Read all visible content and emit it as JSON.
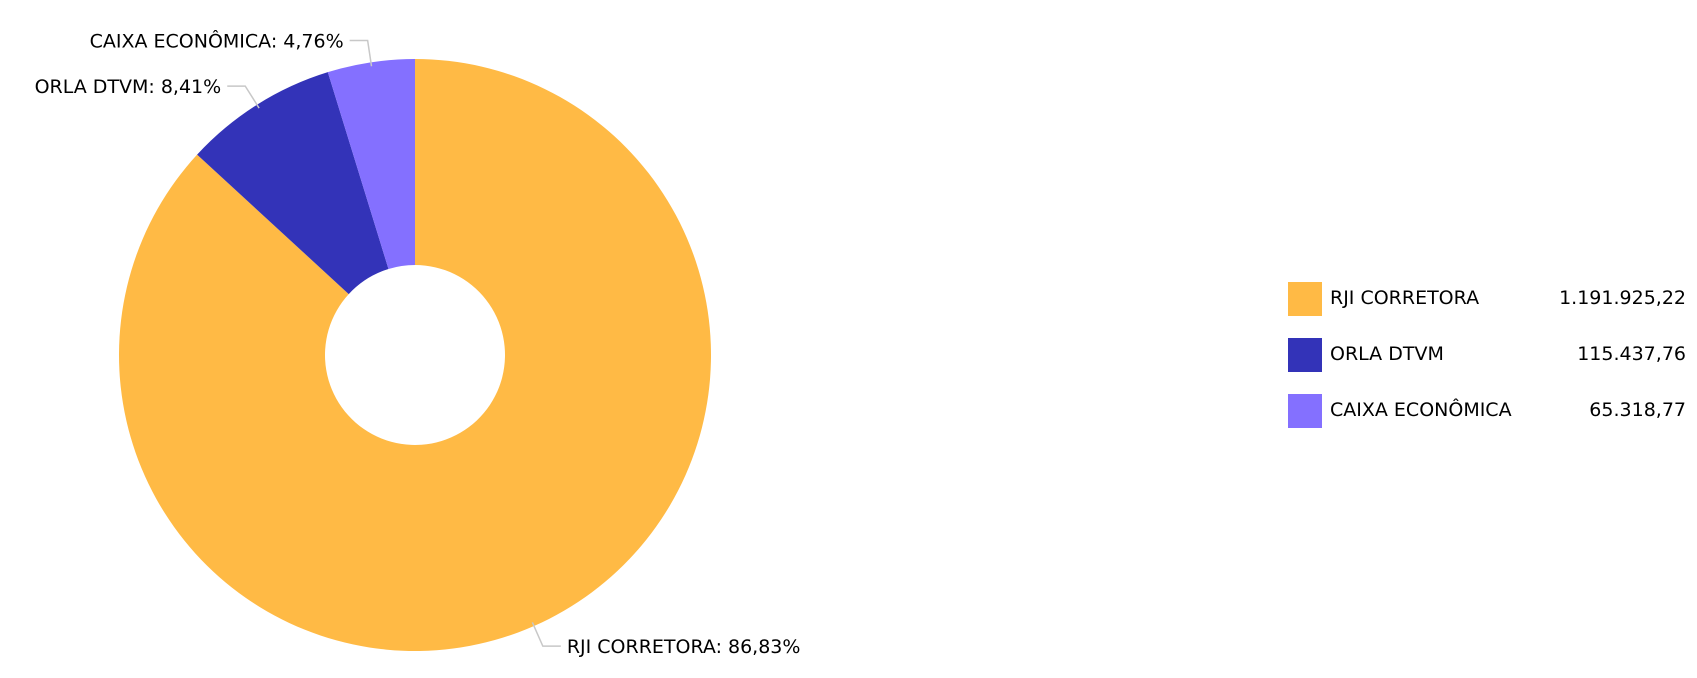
{
  "chart_data": {
    "type": "pie",
    "donut": true,
    "categories": [
      "RJI CORRETORA",
      "ORLA DTVM",
      "CAIXA ECONÔMICA"
    ],
    "values": [
      1191925.22,
      115437.76,
      65318.77
    ],
    "percent_labels": [
      "RJI CORRETORA: 86,83%",
      "ORLA DTVM: 8,41%",
      "CAIXA ECONÔMICA: 4,76%"
    ],
    "colors": [
      "#FFBA45",
      "#3333B8",
      "#8470FF"
    ],
    "legend": {
      "placement": "right",
      "entries": [
        {
          "label": "RJI CORRETORA",
          "value": "1.191.925,22",
          "color": "#FFBA45"
        },
        {
          "label": "ORLA DTVM",
          "value": "115.437,76",
          "color": "#3333B8"
        },
        {
          "label": "CAIXA ECONÔMICA",
          "value": "65.318,77",
          "color": "#8470FF"
        }
      ]
    }
  }
}
